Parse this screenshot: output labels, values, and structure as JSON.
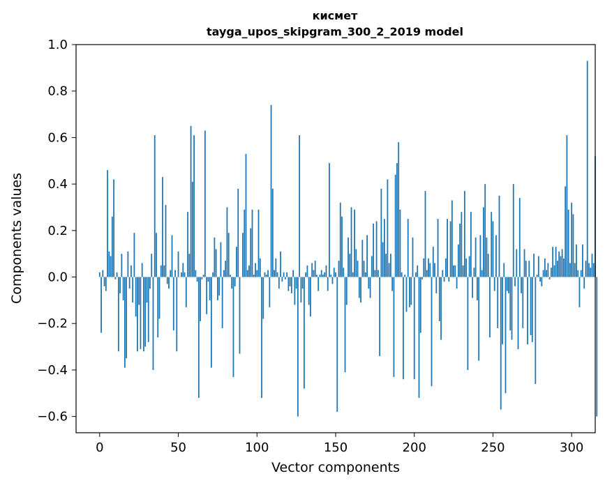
{
  "chart_data": {
    "type": "bar",
    "title_line1": "кисмет",
    "title_line2": "tayga_upos_skipgram_300_2_2019 model",
    "xlabel": "Vector components",
    "ylabel": "Components values",
    "xlim": [
      -15,
      315
    ],
    "ylim": [
      -0.67,
      1.0
    ],
    "x_ticks": [
      0,
      50,
      100,
      150,
      200,
      250,
      300
    ],
    "x_tick_labels": [
      "0",
      "50",
      "100",
      "150",
      "200",
      "250",
      "300"
    ],
    "y_ticks": [
      1.0,
      0.8,
      0.6,
      0.4,
      0.2,
      0.0,
      -0.2,
      -0.4,
      -0.6
    ],
    "y_tick_labels": [
      "1.0",
      "0.8",
      "0.6",
      "0.4",
      "0.2",
      "0.0",
      "−0.2",
      "−0.4",
      "−0.6"
    ],
    "bar_color": "#1f77b4",
    "values": [
      0.02,
      -0.24,
      0.03,
      -0.04,
      -0.06,
      0.46,
      0.11,
      0.09,
      0.26,
      0.42,
      -0.01,
      0.02,
      -0.32,
      -0.07,
      0.1,
      -0.1,
      -0.39,
      -0.35,
      0.11,
      -0.05,
      0.05,
      -0.11,
      0.19,
      -0.17,
      -0.32,
      -0.12,
      -0.31,
      0.06,
      -0.32,
      -0.3,
      -0.11,
      -0.28,
      -0.05,
      0.1,
      -0.4,
      0.61,
      0.19,
      -0.26,
      -0.18,
      0.05,
      0.43,
      0.05,
      0.31,
      -0.03,
      -0.05,
      0.03,
      0.18,
      -0.23,
      0.03,
      -0.32,
      0.11,
      0.0,
      0.02,
      0.06,
      0.02,
      -0.13,
      0.28,
      0.1,
      0.65,
      0.41,
      0.61,
      0.03,
      -0.02,
      -0.52,
      -0.19,
      -0.01,
      0.01,
      0.63,
      -0.16,
      -0.02,
      -0.1,
      -0.39,
      0.02,
      0.17,
      0.12,
      -0.1,
      -0.08,
      0.15,
      -0.22,
      0.03,
      0.07,
      0.3,
      0.19,
      0.01,
      -0.05,
      -0.43,
      -0.04,
      0.13,
      0.38,
      -0.33,
      0.0,
      0.19,
      0.29,
      0.53,
      0.03,
      0.05,
      0.21,
      0.29,
      0.01,
      0.06,
      0.03,
      0.29,
      0.08,
      -0.52,
      -0.18,
      0.02,
      0.01,
      0.03,
      -0.13,
      0.74,
      0.38,
      0.03,
      0.08,
      0.02,
      -0.05,
      0.11,
      -0.02,
      0.02,
      -0.01,
      0.02,
      -0.06,
      -0.04,
      -0.07,
      0.03,
      -0.12,
      -0.05,
      -0.6,
      0.61,
      -0.11,
      -0.05,
      -0.48,
      0.02,
      0.05,
      -0.12,
      -0.17,
      0.06,
      0.03,
      0.07,
      0.01,
      -0.06,
      0.01,
      0.03,
      0.01,
      0.02,
      0.05,
      -0.06,
      0.49,
      0.01,
      -0.03,
      0.04,
      0.02,
      -0.58,
      0.07,
      0.32,
      0.26,
      0.04,
      -0.41,
      -0.12,
      0.17,
      0.1,
      0.3,
      0.02,
      0.29,
      0.12,
      0.07,
      -0.09,
      -0.11,
      0.16,
      0.07,
      0.02,
      0.18,
      -0.05,
      -0.09,
      0.09,
      0.23,
      0.03,
      0.24,
      0.03,
      -0.34,
      0.38,
      0.15,
      0.25,
      0.1,
      0.42,
      0.06,
      0.1,
      -0.06,
      -0.43,
      0.44,
      0.49,
      0.58,
      0.29,
      0.02,
      -0.44,
      0.01,
      -0.15,
      0.25,
      -0.13,
      -0.12,
      0.17,
      -0.44,
      0.02,
      0.05,
      -0.52,
      -0.24,
      -0.01,
      0.08,
      0.37,
      0.03,
      0.08,
      0.06,
      -0.47,
      0.13,
      0.06,
      -0.07,
      0.25,
      -0.19,
      -0.27,
      0.03,
      -0.02,
      0.08,
      0.25,
      -0.02,
      0.24,
      0.33,
      0.05,
      0.05,
      -0.05,
      0.14,
      0.23,
      0.28,
      0.05,
      0.37,
      0.08,
      -0.4,
      0.09,
      0.28,
      -0.09,
      0.04,
      0.17,
      -0.1,
      -0.36,
      0.18,
      0.03,
      0.3,
      0.4,
      0.17,
      0.1,
      -0.26,
      0.28,
      0.24,
      -0.06,
      0.18,
      -0.22,
      0.35,
      -0.57,
      -0.29,
      0.06,
      -0.5,
      -0.06,
      -0.07,
      -0.23,
      -0.27,
      0.4,
      -0.04,
      0.12,
      -0.31,
      0.34,
      -0.07,
      -0.22,
      0.12,
      0.07,
      -0.29,
      0.07,
      -0.25,
      -0.28,
      0.1,
      -0.46,
      0.01,
      0.09,
      -0.02,
      -0.04,
      0.03,
      0.08,
      0.03,
      0.06,
      -0.01,
      0.04,
      0.13,
      0.05,
      0.13,
      0.07,
      0.11,
      0.09,
      0.12,
      0.08,
      0.39,
      0.61,
      0.29,
      0.06,
      0.32,
      0.27,
      0.06,
      0.14,
      0.03,
      -0.13,
      0.03,
      0.14,
      -0.05,
      0.07,
      0.93,
      0.06,
      0.04,
      0.1,
      0.06,
      0.52,
      -0.6
    ]
  }
}
